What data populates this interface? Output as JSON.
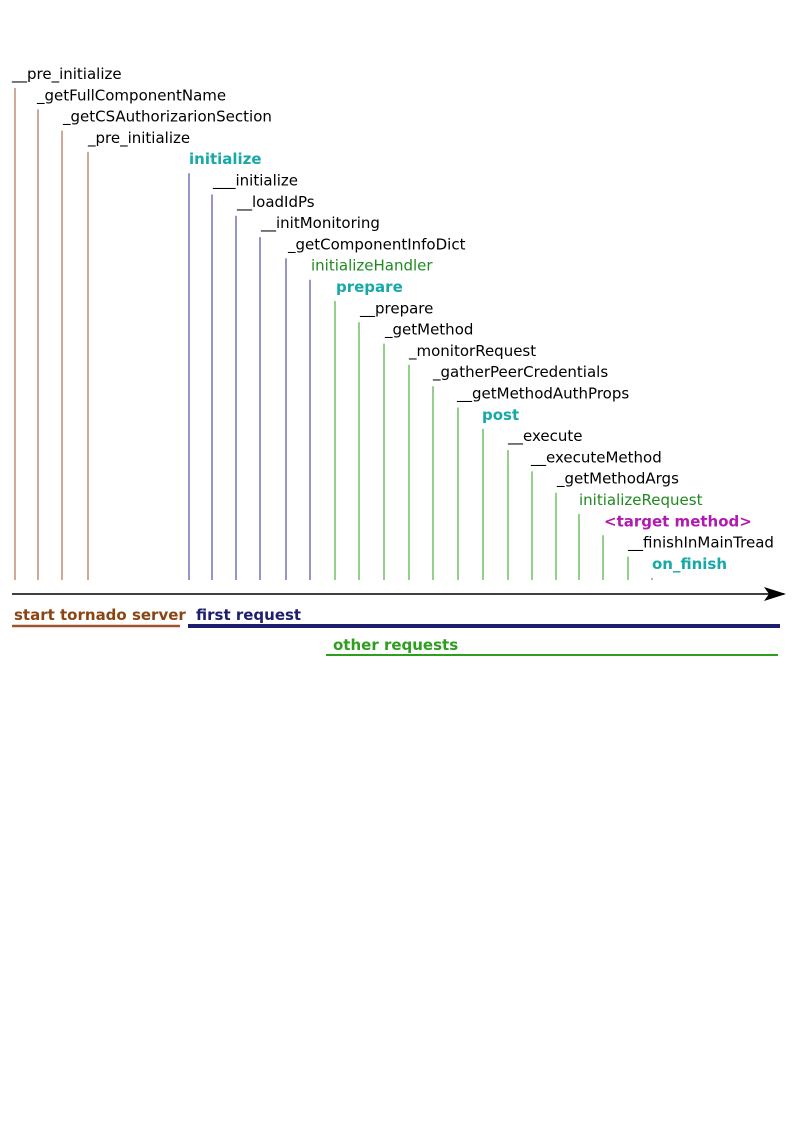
{
  "colors": {
    "black": "#000000",
    "brown": "#a0522d",
    "brown_text": "#8b4513",
    "navy": "#1e1e6e",
    "navy_line": "#2b2b8f",
    "green": "#2e9e1e",
    "green_text": "#1f8a1f",
    "teal": "#17a8a8",
    "magenta": "#b01ab0"
  },
  "steps": [
    {
      "label": "__pre_initialize",
      "style": "plain",
      "phase": "startup"
    },
    {
      "label": "_getFullComponentName",
      "style": "plain",
      "phase": "startup"
    },
    {
      "label": "_getCSAuthorizarionSection",
      "style": "plain",
      "phase": "startup"
    },
    {
      "label": "_pre_initialize",
      "style": "plain",
      "phase": "startup"
    },
    {
      "label": "initialize",
      "style": "teal",
      "phase": "first"
    },
    {
      "label": "___initialize",
      "style": "plain",
      "phase": "first"
    },
    {
      "label": "__loadIdPs",
      "style": "plain",
      "phase": "first"
    },
    {
      "label": "__initMonitoring",
      "style": "plain",
      "phase": "first"
    },
    {
      "label": "_getComponentInfoDict",
      "style": "plain",
      "phase": "first"
    },
    {
      "label": "initializeHandler",
      "style": "green",
      "phase": "first"
    },
    {
      "label": "prepare",
      "style": "teal",
      "phase": "request"
    },
    {
      "label": "__prepare",
      "style": "plain",
      "phase": "request"
    },
    {
      "label": "_getMethod",
      "style": "plain",
      "phase": "request"
    },
    {
      "label": "_monitorRequest",
      "style": "plain",
      "phase": "request"
    },
    {
      "label": "_gatherPeerCredentials",
      "style": "plain",
      "phase": "request"
    },
    {
      "label": "__getMethodAuthProps",
      "style": "plain",
      "phase": "request"
    },
    {
      "label": "post",
      "style": "teal",
      "phase": "request"
    },
    {
      "label": "__execute",
      "style": "plain",
      "phase": "request"
    },
    {
      "label": "__executeMethod",
      "style": "plain",
      "phase": "request"
    },
    {
      "label": "_getMethodArgs",
      "style": "plain",
      "phase": "request"
    },
    {
      "label": "initializeRequest",
      "style": "green",
      "phase": "request"
    },
    {
      "label": "<target method>",
      "style": "magenta",
      "phase": "request"
    },
    {
      "label": "__finishInMainTread",
      "style": "plain",
      "phase": "request"
    },
    {
      "label": "on_finish",
      "style": "teal",
      "phase": "request"
    }
  ],
  "phases": {
    "startup": {
      "label": "start tornado server"
    },
    "first": {
      "label": "first request"
    },
    "request": {
      "label": "other requests"
    }
  }
}
